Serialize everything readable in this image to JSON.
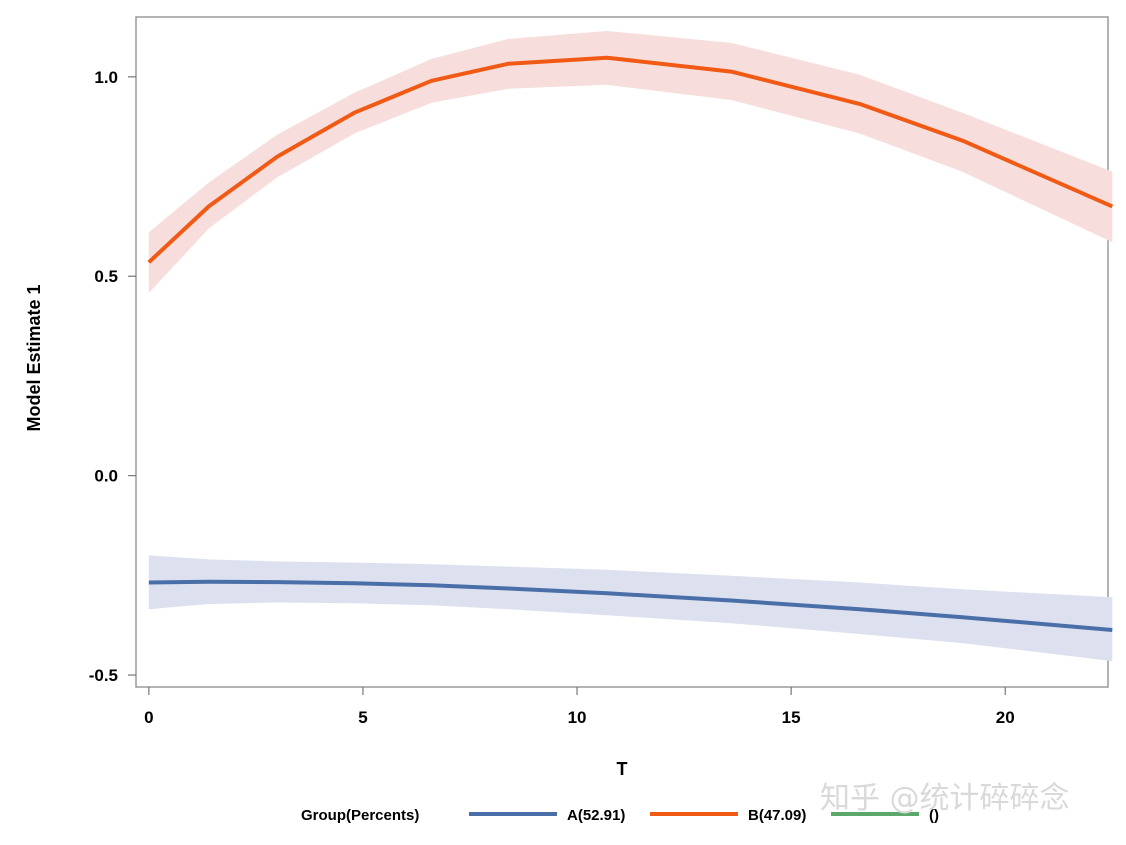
{
  "chart_data": {
    "type": "line",
    "title": "",
    "xlabel": "T",
    "ylabel": "Model Estimate 1",
    "xlim": [
      -0.3,
      22.4
    ],
    "ylim": [
      -0.53,
      1.15
    ],
    "xticks": [
      0,
      5,
      10,
      15,
      20
    ],
    "xtick_labels": [
      "0",
      "5",
      "10",
      "15",
      "20"
    ],
    "yticks": [
      -0.5,
      0.0,
      0.5,
      1.0
    ],
    "ytick_labels": [
      "-0.5",
      "0.0",
      "0.5",
      "1.0"
    ],
    "grid": false,
    "legend": {
      "title": "Group(Percents)",
      "placement": "bottom",
      "entries": [
        {
          "label": "A(52.91)",
          "color": "#4a6fa8"
        },
        {
          "label": "B(47.09)",
          "color": "#f05a14"
        },
        {
          "label": "()",
          "color": "#5aa86a"
        }
      ]
    },
    "series": [
      {
        "name": "A(52.91)",
        "color": "#4a6fa8",
        "band_color": "#dde1ef",
        "x": [
          0,
          1.4,
          3.0,
          4.8,
          6.6,
          8.4,
          10.7,
          13.6,
          16.6,
          19.0,
          22.5
        ],
        "y": [
          -0.268,
          -0.266,
          -0.267,
          -0.27,
          -0.275,
          -0.283,
          -0.295,
          -0.313,
          -0.335,
          -0.355,
          -0.387
        ],
        "upper": [
          -0.2,
          -0.21,
          -0.215,
          -0.218,
          -0.222,
          -0.228,
          -0.236,
          -0.251,
          -0.268,
          -0.285,
          -0.305
        ],
        "lower": [
          -0.335,
          -0.322,
          -0.318,
          -0.32,
          -0.325,
          -0.335,
          -0.35,
          -0.37,
          -0.397,
          -0.42,
          -0.465
        ]
      },
      {
        "name": "B(47.09)",
        "color": "#f05a14",
        "band_color": "#f7dedd",
        "x": [
          0,
          1.4,
          3.0,
          4.8,
          6.6,
          8.4,
          10.7,
          13.6,
          16.6,
          19.0,
          22.5
        ],
        "y": [
          0.535,
          0.675,
          0.8,
          0.91,
          0.99,
          1.033,
          1.048,
          1.013,
          0.932,
          0.84,
          0.675
        ],
        "upper": [
          0.61,
          0.735,
          0.855,
          0.96,
          1.045,
          1.095,
          1.115,
          1.085,
          1.005,
          0.91,
          0.762
        ],
        "lower": [
          0.458,
          0.62,
          0.748,
          0.858,
          0.935,
          0.97,
          0.98,
          0.942,
          0.858,
          0.762,
          0.585
        ]
      }
    ]
  },
  "watermark": "知乎 @统计碎碎念"
}
